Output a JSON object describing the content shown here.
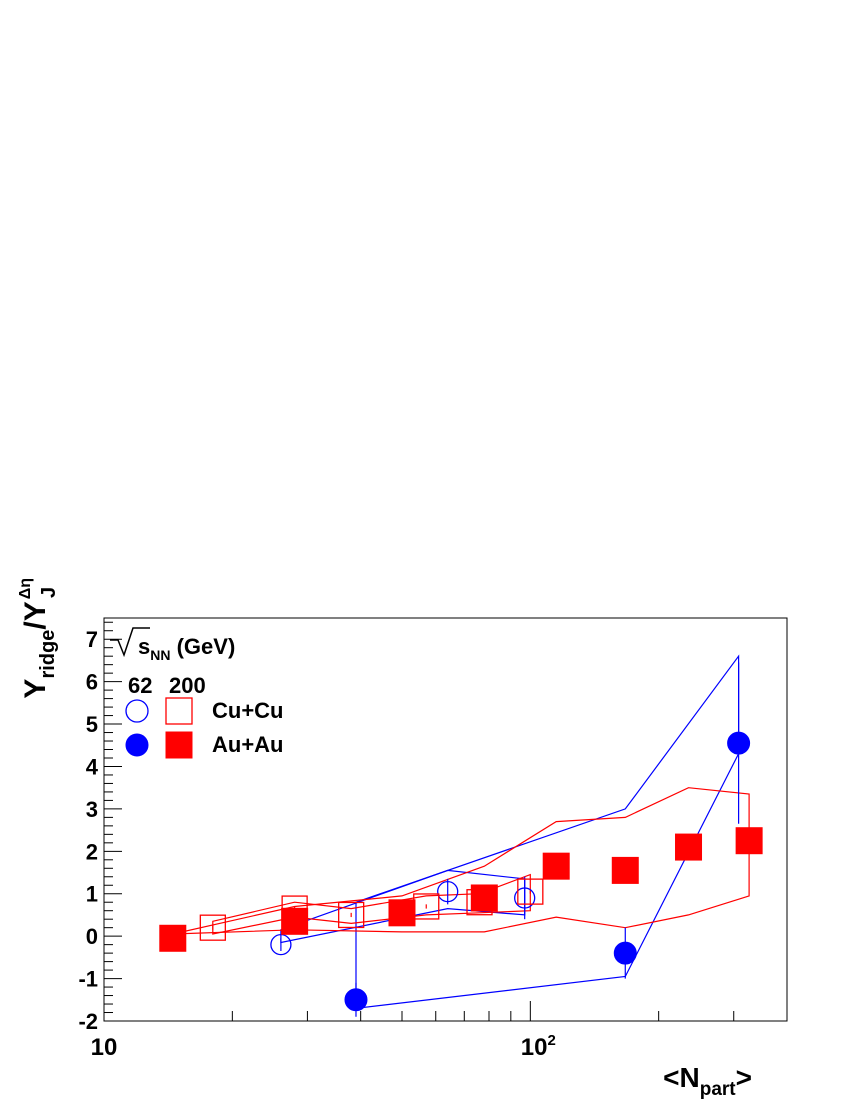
{
  "chart_data": {
    "type": "scatter",
    "xscale": "log",
    "xlim": [
      10,
      400
    ],
    "ylim": [
      -2,
      7.5
    ],
    "xlabel": {
      "open": "<N",
      "sub": "part",
      "close": ">"
    },
    "ylabel": {
      "main": "Y",
      "sub": "ridge",
      "mid": "/Y",
      "sup": "Δη",
      "sub2": "J"
    },
    "x_tick_labels": [
      {
        "x": 10,
        "label": "10"
      },
      {
        "x": 100,
        "label": "10",
        "sup": "2"
      }
    ],
    "y_ticks": [
      -2,
      -1,
      0,
      1,
      2,
      3,
      4,
      5,
      6,
      7
    ],
    "legend": {
      "title_sqrt": "s",
      "title_sub": "NN",
      "title_rest": "(GeV)",
      "col_62": "62",
      "col_200": "200",
      "row_cucu": "Cu+Cu",
      "row_auau": "Au+Au",
      "placement": "top-left"
    },
    "colors": {
      "blue": "#0000ff",
      "red": "#ff0000"
    },
    "series": [
      {
        "name": "Cu+Cu 62",
        "marker": "open-circle",
        "color": "#0000ff",
        "points": [
          {
            "x": 26,
            "y": -0.2,
            "err": 0.15
          },
          {
            "x": 64,
            "y": 1.05,
            "err": 0.3
          },
          {
            "x": 97,
            "y": 0.9,
            "err": 0.5
          }
        ],
        "band_upper": [
          [
            26,
            0.15
          ],
          [
            64,
            1.55
          ],
          [
            97,
            1.35
          ]
        ],
        "band_lower": [
          [
            97,
            0.5
          ],
          [
            64,
            0.65
          ],
          [
            26,
            -0.15
          ]
        ]
      },
      {
        "name": "Au+Au 62",
        "marker": "filled-circle",
        "color": "#0000ff",
        "points": [
          {
            "x": 39,
            "y": -1.5,
            "err": 0.4
          },
          {
            "x": 167,
            "y": -0.4,
            "err": 0.6
          },
          {
            "x": 308,
            "y": 4.55,
            "err": 1.9
          }
        ],
        "band_upper": [
          [
            39,
            0.8
          ],
          [
            167,
            3.0
          ],
          [
            308,
            6.6
          ]
        ],
        "band_lower": [
          [
            308,
            4.3
          ],
          [
            167,
            -0.95
          ],
          [
            39,
            -1.7
          ]
        ]
      },
      {
        "name": "Cu+Cu 200",
        "marker": "open-square",
        "color": "#ff0000",
        "points": [
          {
            "x": 18,
            "y": 0.2,
            "err": 0.05
          },
          {
            "x": 28,
            "y": 0.65,
            "err": 0.05
          },
          {
            "x": 38,
            "y": 0.5,
            "err": 0.05
          },
          {
            "x": 57,
            "y": 0.7,
            "err": 0.05
          },
          {
            "x": 76,
            "y": 0.8,
            "err": 0.05
          },
          {
            "x": 100,
            "y": 1.05,
            "err": 0.05
          }
        ],
        "band_upper": [
          [
            18,
            0.35
          ],
          [
            28,
            0.8
          ],
          [
            38,
            0.65
          ],
          [
            57,
            0.95
          ],
          [
            76,
            1.0
          ],
          [
            100,
            1.45
          ]
        ],
        "band_lower": [
          [
            100,
            0.6
          ],
          [
            76,
            0.55
          ],
          [
            57,
            0.5
          ],
          [
            38,
            0.3
          ],
          [
            28,
            0.45
          ],
          [
            18,
            0.05
          ]
        ]
      },
      {
        "name": "Au+Au 200",
        "marker": "filled-square",
        "color": "#ff0000",
        "points": [
          {
            "x": 14.5,
            "y": -0.05,
            "err": 0.03
          },
          {
            "x": 28,
            "y": 0.35,
            "err": 0.03
          },
          {
            "x": 50,
            "y": 0.55,
            "err": 0.03
          },
          {
            "x": 78,
            "y": 0.9,
            "err": 0.03
          },
          {
            "x": 115,
            "y": 1.65,
            "err": 0.03
          },
          {
            "x": 167,
            "y": 1.55,
            "err": 0.03
          },
          {
            "x": 235,
            "y": 2.1,
            "err": 0.03
          },
          {
            "x": 326,
            "y": 2.25,
            "err": 0.03
          }
        ],
        "band_upper": [
          [
            14.5,
            0.05
          ],
          [
            28,
            0.7
          ],
          [
            50,
            0.95
          ],
          [
            78,
            1.65
          ],
          [
            115,
            2.7
          ],
          [
            167,
            2.8
          ],
          [
            235,
            3.5
          ],
          [
            326,
            3.35
          ]
        ],
        "band_lower": [
          [
            326,
            0.95
          ],
          [
            235,
            0.5
          ],
          [
            167,
            0.2
          ],
          [
            115,
            0.45
          ],
          [
            78,
            0.1
          ],
          [
            50,
            0.1
          ],
          [
            28,
            0.15
          ],
          [
            14.5,
            0.05
          ]
        ]
      }
    ]
  }
}
